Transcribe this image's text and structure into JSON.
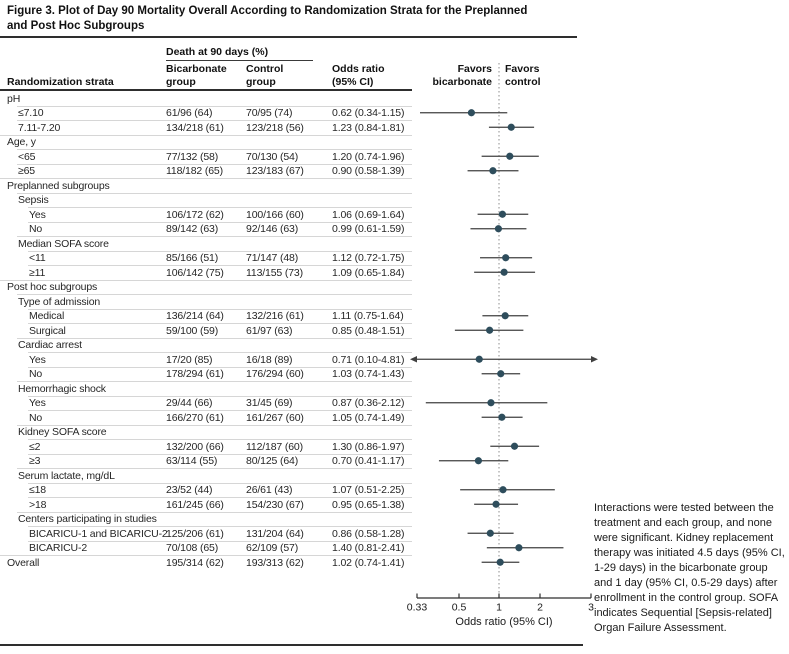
{
  "figure": {
    "title_line1": "Figure 3. Plot of Day 90 Mortality Overall According to Randomization Strata for the Preplanned",
    "title_line2": "and Post Hoc Subgroups"
  },
  "table_header": {
    "strata": "Randomization strata",
    "death_group": "Death at 90 days (%)",
    "bicarb_line1": "Bicarbonate",
    "bicarb_line2": "group",
    "control_line1": "Control",
    "control_line2": "group",
    "or_line1": "Odds ratio",
    "or_line2": "(95% CI)"
  },
  "plot_header": {
    "favors_left_line1": "Favors",
    "favors_left_line2": "bicarbonate",
    "favors_right_line1": "Favors",
    "favors_right_line2": "control"
  },
  "note": "Interactions were tested between the treatment and each group, and none were significant. Kidney replacement therapy was initiated 4.5 days (95% CI, 1-29 days) in the bicarbonate group and 1 day (95% CI, 0.5-29 days) after enrollment in the control group. SOFA indicates Sequential [Sepsis-related] Organ Failure Assessment.",
  "colors": {
    "marker": "#2e4d5c",
    "ci_line": "#404040",
    "axis": "#2e2e2e",
    "dotted_reference": "#8c8c8c",
    "hairline": "#d6d6d6"
  },
  "chart_data": {
    "type": "scatter",
    "title": "Figure 3. Plot of Day 90 Mortality Overall According to Randomization Strata for the Preplanned and Post Hoc Subgroups",
    "xlabel": "Odds ratio (95% CI)",
    "x_scale": "log",
    "xlim": [
      0.33,
      3
    ],
    "x_ticks": [
      0.33,
      0.5,
      1,
      2,
      3
    ],
    "x_tick_labels": [
      "0.33",
      "0.5",
      "1",
      "2",
      "3"
    ],
    "reference_line": 1,
    "legend_note": "markers = odds ratio point estimate, horizontal bars = 95% CI, arrows = CI exceeds axis range",
    "rows": [
      {
        "label": "pH",
        "indent": 0
      },
      {
        "label": "≤7.10",
        "indent": 1,
        "bicarbonate": "61/96 (64)",
        "control": "70/95 (74)",
        "or_text": "0.62 (0.34-1.15)",
        "or": 0.62,
        "lo": 0.34,
        "hi": 1.15
      },
      {
        "label": "7.11-7.20",
        "indent": 1,
        "bicarbonate": "134/218 (61)",
        "control": "123/218 (56)",
        "or_text": "1.23 (0.84-1.81)",
        "or": 1.23,
        "lo": 0.84,
        "hi": 1.81
      },
      {
        "label": "Age, y",
        "indent": 0
      },
      {
        "label": "<65",
        "indent": 1,
        "bicarbonate": "77/132 (58)",
        "control": "70/130 (54)",
        "or_text": "1.20 (0.74-1.96)",
        "or": 1.2,
        "lo": 0.74,
        "hi": 1.96
      },
      {
        "label": "≥65",
        "indent": 1,
        "bicarbonate": "118/182 (65)",
        "control": "123/183 (67)",
        "or_text": "0.90 (0.58-1.39)",
        "or": 0.9,
        "lo": 0.58,
        "hi": 1.39
      },
      {
        "label": "Preplanned subgroups",
        "indent": 0
      },
      {
        "label": "Sepsis",
        "indent": 1
      },
      {
        "label": "Yes",
        "indent": 2,
        "bicarbonate": "106/172 (62)",
        "control": "100/166 (60)",
        "or_text": "1.06 (0.69-1.64)",
        "or": 1.06,
        "lo": 0.69,
        "hi": 1.64
      },
      {
        "label": "No",
        "indent": 2,
        "bicarbonate": "89/142 (63)",
        "control": "92/146 (63)",
        "or_text": "0.99 (0.61-1.59)",
        "or": 0.99,
        "lo": 0.61,
        "hi": 1.59
      },
      {
        "label": "Median SOFA score",
        "indent": 1
      },
      {
        "label": "<11",
        "indent": 2,
        "bicarbonate": "85/166 (51)",
        "control": "71/147 (48)",
        "or_text": "1.12 (0.72-1.75)",
        "or": 1.12,
        "lo": 0.72,
        "hi": 1.75
      },
      {
        "label": "≥11",
        "indent": 2,
        "bicarbonate": "106/142 (75)",
        "control": "113/155 (73)",
        "or_text": "1.09 (0.65-1.84)",
        "or": 1.09,
        "lo": 0.65,
        "hi": 1.84
      },
      {
        "label": "Post hoc subgroups",
        "indent": 0
      },
      {
        "label": "Type of admission",
        "indent": 1
      },
      {
        "label": "Medical",
        "indent": 2,
        "bicarbonate": "136/214 (64)",
        "control": "132/216 (61)",
        "or_text": "1.11 (0.75-1.64)",
        "or": 1.11,
        "lo": 0.75,
        "hi": 1.64
      },
      {
        "label": "Surgical",
        "indent": 2,
        "bicarbonate": "59/100 (59)",
        "control": "61/97 (63)",
        "or_text": "0.85 (0.48-1.51)",
        "or": 0.85,
        "lo": 0.48,
        "hi": 1.51
      },
      {
        "label": "Cardiac arrest",
        "indent": 1
      },
      {
        "label": "Yes",
        "indent": 2,
        "bicarbonate": "17/20 (85)",
        "control": "16/18 (89)",
        "or_text": "0.71 (0.10-4.81)",
        "or": 0.71,
        "lo": 0.1,
        "hi": 4.81
      },
      {
        "label": "No",
        "indent": 2,
        "bicarbonate": "178/294 (61)",
        "control": "176/294 (60)",
        "or_text": "1.03 (0.74-1.43)",
        "or": 1.03,
        "lo": 0.74,
        "hi": 1.43
      },
      {
        "label": "Hemorrhagic shock",
        "indent": 1
      },
      {
        "label": "Yes",
        "indent": 2,
        "bicarbonate": "29/44 (66)",
        "control": "31/45 (69)",
        "or_text": "0.87 (0.36-2.12)",
        "or": 0.87,
        "lo": 0.36,
        "hi": 2.12
      },
      {
        "label": "No",
        "indent": 2,
        "bicarbonate": "166/270 (61)",
        "control": "161/267 (60)",
        "or_text": "1.05 (0.74-1.49)",
        "or": 1.05,
        "lo": 0.74,
        "hi": 1.49
      },
      {
        "label": "Kidney SOFA score",
        "indent": 1
      },
      {
        "label": "≤2",
        "indent": 2,
        "bicarbonate": "132/200 (66)",
        "control": "112/187 (60)",
        "or_text": "1.30 (0.86-1.97)",
        "or": 1.3,
        "lo": 0.86,
        "hi": 1.97
      },
      {
        "label": "≥3",
        "indent": 2,
        "bicarbonate": "63/114 (55)",
        "control": "80/125 (64)",
        "or_text": "0.70 (0.41-1.17)",
        "or": 0.7,
        "lo": 0.41,
        "hi": 1.17
      },
      {
        "label": "Serum lactate, mg/dL",
        "indent": 1
      },
      {
        "label": "≤18",
        "indent": 2,
        "bicarbonate": "23/52 (44)",
        "control": "26/61 (43)",
        "or_text": "1.07 (0.51-2.25)",
        "or": 1.07,
        "lo": 0.51,
        "hi": 2.25
      },
      {
        "label": ">18",
        "indent": 2,
        "bicarbonate": "161/245 (66)",
        "control": "154/230 (67)",
        "or_text": "0.95 (0.65-1.38)",
        "or": 0.95,
        "lo": 0.65,
        "hi": 1.38
      },
      {
        "label": "Centers participating in studies",
        "indent": 1
      },
      {
        "label": "BICARICU-1 and BICARICU-2",
        "indent": 2,
        "bicarbonate": "125/206 (61)",
        "control": "131/204 (64)",
        "or_text": "0.86 (0.58-1.28)",
        "or": 0.86,
        "lo": 0.58,
        "hi": 1.28
      },
      {
        "label": "BICARICU-2",
        "indent": 2,
        "bicarbonate": "70/108 (65)",
        "control": "62/109 (57)",
        "or_text": "1.40 (0.81-2.41)",
        "or": 1.4,
        "lo": 0.81,
        "hi": 2.41
      },
      {
        "label": "Overall",
        "indent": 0,
        "bicarbonate": "195/314 (62)",
        "control": "193/313 (62)",
        "or_text": "1.02 (0.74-1.41)",
        "or": 1.02,
        "lo": 0.74,
        "hi": 1.41
      }
    ]
  }
}
